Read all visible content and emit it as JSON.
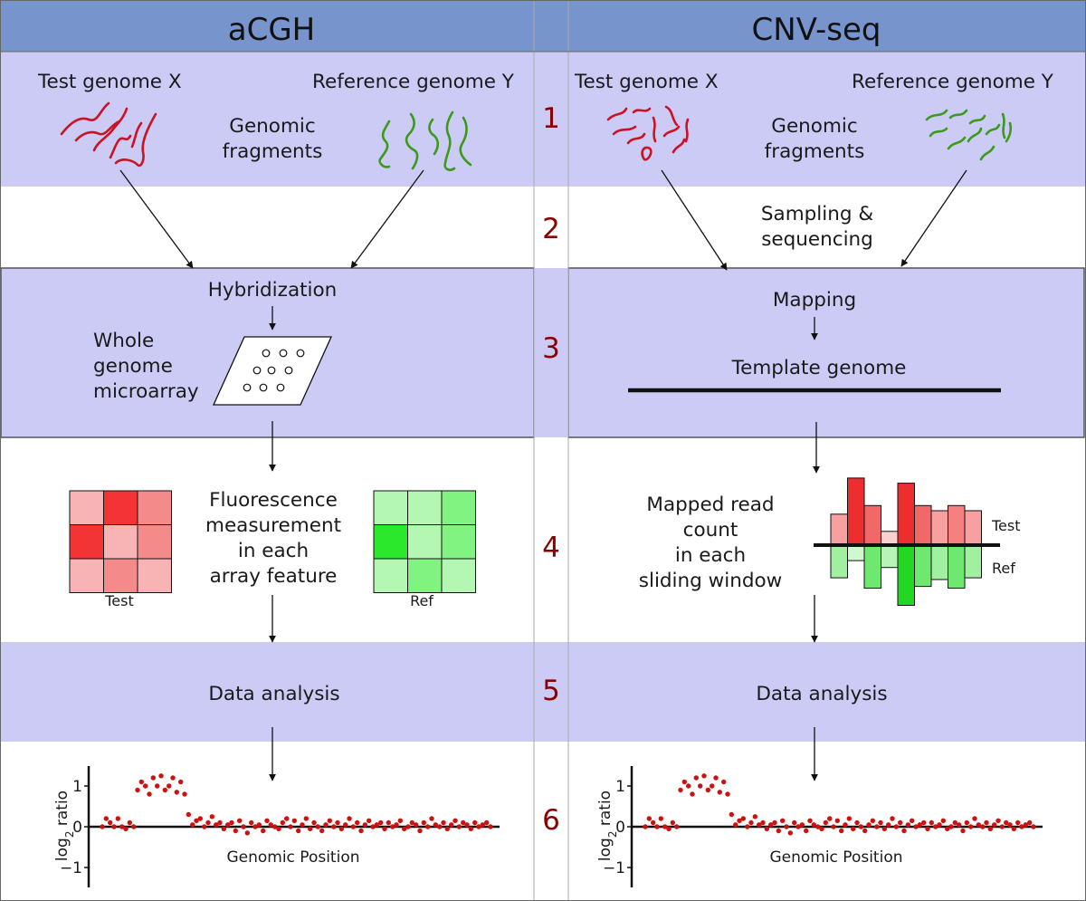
{
  "headers": {
    "left": "aCGH",
    "right": "CNV-seq"
  },
  "steps": [
    "1",
    "2",
    "3",
    "4",
    "5",
    "6"
  ],
  "acgh": {
    "test_genome": "Test genome X",
    "reference_genome": "Reference genome Y",
    "fragments": [
      "Genomic",
      "fragments"
    ],
    "hybridization": "Hybridization",
    "microarray": [
      "Whole",
      "genome",
      "microarray"
    ],
    "fluorescence": [
      "Fluorescence",
      "measurement",
      "in each",
      "array feature"
    ],
    "test_grid_label": "Test",
    "ref_grid_label": "Ref",
    "test_grid_colors": [
      "#f8b4b4",
      "#f23434",
      "#f48a8a",
      "#f23434",
      "#f8b4b4",
      "#f48a8a",
      "#f8b4b4",
      "#f48a8a",
      "#f8b4b4"
    ],
    "ref_grid_colors": [
      "#b3f7b3",
      "#b3f7b3",
      "#80f380",
      "#2ce82c",
      "#b3f7b3",
      "#80f380",
      "#b3f7b3",
      "#80f380",
      "#b3f7b3"
    ],
    "data_analysis": "Data analysis"
  },
  "cnvseq": {
    "test_genome": "Test genome X",
    "reference_genome": "Reference genome Y",
    "fragments": [
      "Genomic",
      "fragments"
    ],
    "sampling": [
      "Sampling &",
      "sequencing"
    ],
    "mapping": "Mapping",
    "template_genome": "Template genome",
    "mapped": [
      "Mapped read",
      "count",
      "in each",
      "sliding window"
    ],
    "bars_test_label": "Test",
    "bars_ref_label": "Ref",
    "bar_chart": {
      "test_heights": [
        1.8,
        3.9,
        2.3,
        0.8,
        3.6,
        2.3,
        2.0,
        2.3,
        2.0
      ],
      "test_colors": [
        "#f8a0a0",
        "#ee2e2e",
        "#f06868",
        "#fbd0d0",
        "#ee2e2e",
        "#f06868",
        "#f8a0a0",
        "#f48080",
        "#f8a0a0"
      ],
      "ref_depths": [
        1.9,
        0.9,
        2.5,
        1.3,
        3.5,
        2.4,
        2.0,
        2.5,
        1.9
      ],
      "ref_colors": [
        "#a0f0a0",
        "#d0f8d0",
        "#6ee86e",
        "#b8f4b8",
        "#22d822",
        "#6ee86e",
        "#a0f0a0",
        "#6ee86e",
        "#a0f0a0"
      ]
    },
    "data_analysis": "Data analysis"
  },
  "chart_data": [
    {
      "type": "scatter",
      "title": "",
      "xlabel": "Genomic Position",
      "ylabel": "log2 ratio",
      "ylabel_base": "log",
      "ylabel_subscript": "2",
      "ylabel_rest": "ratio",
      "yticks": [
        "1",
        "0",
        "−1"
      ],
      "ylim": [
        -1.2,
        1.5
      ],
      "x": [
        1,
        2,
        3,
        4,
        5,
        6,
        7,
        8,
        9,
        10,
        11,
        12,
        13,
        14,
        15,
        16,
        17,
        18,
        19,
        20,
        21,
        22,
        23,
        24,
        25,
        26,
        27,
        28,
        29,
        30,
        31,
        32,
        33,
        34,
        35,
        36,
        37,
        38,
        39,
        40,
        41,
        42,
        43,
        44,
        45,
        46,
        47,
        48,
        49,
        50,
        51,
        52,
        53,
        54,
        55,
        56,
        57,
        58,
        59,
        60,
        61,
        62,
        63,
        64,
        65,
        66,
        67,
        68,
        69,
        70,
        71,
        72,
        73,
        74,
        75,
        76,
        77,
        78,
        79,
        80,
        81,
        82,
        83,
        84,
        85,
        86,
        87,
        88,
        89,
        90,
        91,
        92,
        93,
        94,
        95,
        96,
        97,
        98,
        99,
        100
      ],
      "y": [
        0.0,
        0.2,
        0.1,
        0.0,
        0.2,
        0.0,
        -0.05,
        0.1,
        0.0,
        0.9,
        1.1,
        1.0,
        0.8,
        1.2,
        1.0,
        1.25,
        0.9,
        1.0,
        1.2,
        0.85,
        1.1,
        0.8,
        0.3,
        0.05,
        0.15,
        0.2,
        0.0,
        0.1,
        0.25,
        0.05,
        0.1,
        -0.05,
        0.05,
        0.1,
        -0.1,
        0.15,
        0.0,
        -0.15,
        0.1,
        0.0,
        0.05,
        -0.1,
        0.15,
        0.05,
        0.0,
        -0.05,
        0.1,
        0.2,
        0.0,
        0.15,
        -0.1,
        0.05,
        0.2,
        -0.05,
        0.1,
        0.0,
        -0.1,
        0.05,
        0.15,
        0.0,
        0.1,
        -0.05,
        0.05,
        0.2,
        0.0,
        0.1,
        -0.1,
        0.05,
        0.15,
        0.0,
        0.05,
        0.1,
        -0.05,
        0.1,
        0.0,
        0.05,
        0.15,
        -0.05,
        0.0,
        0.1,
        0.05,
        -0.1,
        0.1,
        0.0,
        0.2,
        0.05,
        0.0,
        0.1,
        -0.05,
        0.05,
        0.15,
        0.0,
        0.1,
        0.05,
        -0.05,
        0.1,
        0.0,
        0.05,
        0.1,
        0.0
      ]
    },
    {
      "type": "scatter",
      "title": "",
      "xlabel": "Genomic Position",
      "ylabel": "log2 ratio",
      "ylabel_base": "log",
      "ylabel_subscript": "2",
      "ylabel_rest": "ratio",
      "yticks": [
        "1",
        "0",
        "−1"
      ],
      "ylim": [
        -1.2,
        1.5
      ],
      "x": [
        1,
        2,
        3,
        4,
        5,
        6,
        7,
        8,
        9,
        10,
        11,
        12,
        13,
        14,
        15,
        16,
        17,
        18,
        19,
        20,
        21,
        22,
        23,
        24,
        25,
        26,
        27,
        28,
        29,
        30,
        31,
        32,
        33,
        34,
        35,
        36,
        37,
        38,
        39,
        40,
        41,
        42,
        43,
        44,
        45,
        46,
        47,
        48,
        49,
        50,
        51,
        52,
        53,
        54,
        55,
        56,
        57,
        58,
        59,
        60,
        61,
        62,
        63,
        64,
        65,
        66,
        67,
        68,
        69,
        70,
        71,
        72,
        73,
        74,
        75,
        76,
        77,
        78,
        79,
        80,
        81,
        82,
        83,
        84,
        85,
        86,
        87,
        88,
        89,
        90,
        91,
        92,
        93,
        94,
        95,
        96,
        97,
        98,
        99,
        100
      ],
      "y": [
        0.0,
        0.2,
        0.1,
        0.0,
        0.2,
        0.0,
        -0.05,
        0.1,
        0.0,
        0.9,
        1.1,
        1.0,
        0.8,
        1.2,
        1.0,
        1.25,
        0.9,
        1.0,
        1.2,
        0.85,
        1.1,
        0.8,
        0.3,
        0.05,
        0.15,
        0.2,
        0.0,
        0.1,
        0.25,
        0.05,
        0.1,
        -0.05,
        0.05,
        0.1,
        -0.1,
        0.15,
        0.0,
        -0.15,
        0.1,
        0.0,
        0.05,
        -0.1,
        0.15,
        0.05,
        0.0,
        -0.05,
        0.1,
        0.2,
        0.0,
        0.15,
        -0.1,
        0.05,
        0.2,
        -0.05,
        0.1,
        0.0,
        -0.1,
        0.05,
        0.15,
        0.0,
        0.1,
        -0.05,
        0.05,
        0.2,
        0.0,
        0.1,
        -0.1,
        0.05,
        0.15,
        0.0,
        0.05,
        0.1,
        -0.05,
        0.1,
        0.0,
        0.05,
        0.15,
        -0.05,
        0.0,
        0.1,
        0.05,
        -0.1,
        0.1,
        0.0,
        0.2,
        0.05,
        0.0,
        0.1,
        -0.05,
        0.05,
        0.15,
        0.0,
        0.1,
        0.05,
        -0.05,
        0.1,
        0.0,
        0.05,
        0.1,
        0.0
      ]
    }
  ]
}
